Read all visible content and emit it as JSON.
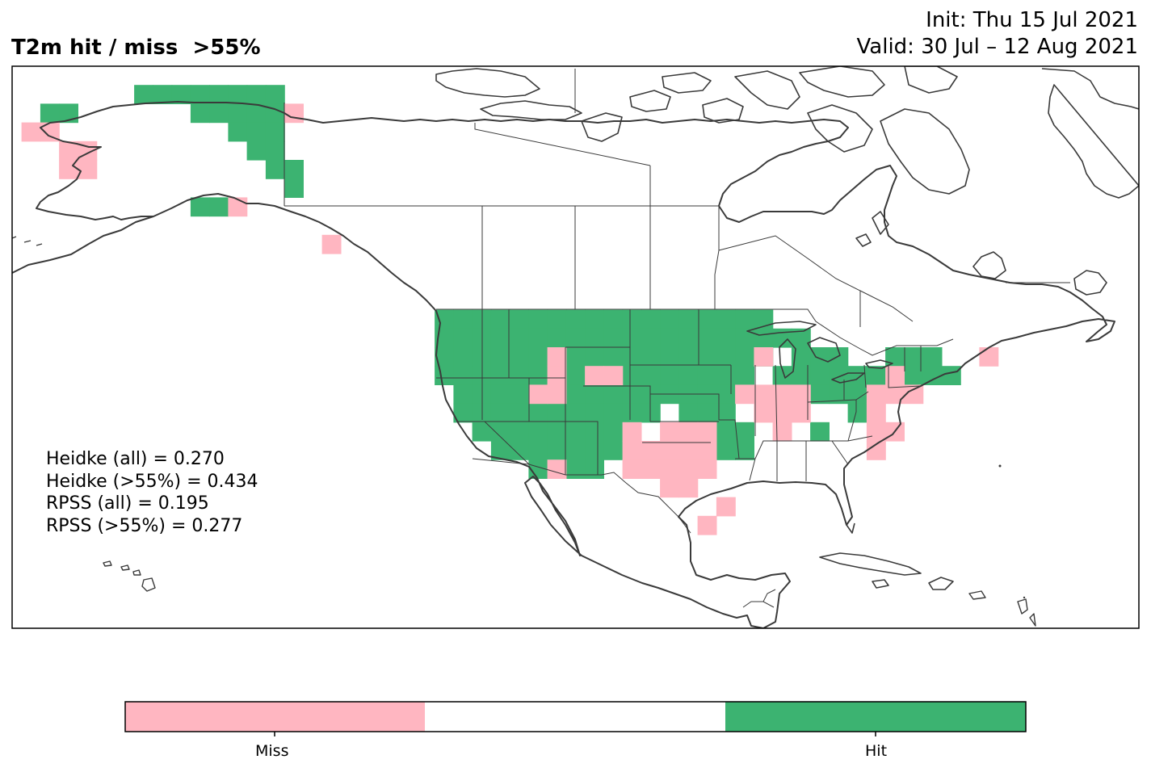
{
  "header": {
    "title": "T2m hit / miss  >55%",
    "init": "Init: Thu 15 Jul 2021",
    "valid": "Valid: 30 Jul – 12 Aug 2021"
  },
  "stats": [
    "Heidke (all) = 0.270",
    "Heidke (>55%) = 0.434",
    "RPSS (all) = 0.195",
    "RPSS (>55%) = 0.277"
  ],
  "legend": {
    "categories": [
      "Miss",
      "",
      "Hit"
    ],
    "labels": {
      "miss": "Miss",
      "hit": "Hit"
    },
    "colors": {
      "miss": "#ffb6c1",
      "neutral": "#ffffff",
      "hit": "#3cb371"
    }
  },
  "colors": {
    "coast": "#3a3a3a",
    "border": "#3a3a3a",
    "frame": "#000000"
  },
  "map_data": {
    "projection": "PlateCarree",
    "extent": {
      "lon": [
        -170,
        -50
      ],
      "lat": [
        15,
        75
      ]
    },
    "cell_size_deg": 2,
    "hit_cells": [
      [
        -166,
        70
      ],
      [
        -164,
        70
      ],
      [
        -156,
        72
      ],
      [
        -154,
        72
      ],
      [
        -152,
        72
      ],
      [
        -150,
        72
      ],
      [
        -148,
        72
      ],
      [
        -146,
        72
      ],
      [
        -144,
        72
      ],
      [
        -142,
        72
      ],
      [
        -150,
        70
      ],
      [
        -148,
        70
      ],
      [
        -146,
        70
      ],
      [
        -144,
        70
      ],
      [
        -142,
        70
      ],
      [
        -146,
        68
      ],
      [
        -144,
        68
      ],
      [
        -142,
        68
      ],
      [
        -144,
        66
      ],
      [
        -142,
        66
      ],
      [
        -142,
        64
      ],
      [
        -140,
        64
      ],
      [
        -140,
        62
      ],
      [
        -150,
        60
      ],
      [
        -148,
        60
      ],
      [
        -124,
        48
      ],
      [
        -122,
        48
      ],
      [
        -120,
        48
      ],
      [
        -118,
        48
      ],
      [
        -116,
        48
      ],
      [
        -114,
        48
      ],
      [
        -112,
        48
      ],
      [
        -110,
        48
      ],
      [
        -108,
        48
      ],
      [
        -106,
        48
      ],
      [
        -104,
        48
      ],
      [
        -102,
        48
      ],
      [
        -100,
        48
      ],
      [
        -98,
        48
      ],
      [
        -96,
        48
      ],
      [
        -94,
        48
      ],
      [
        -92,
        48
      ],
      [
        -90,
        48
      ],
      [
        -124,
        46
      ],
      [
        -122,
        46
      ],
      [
        -120,
        46
      ],
      [
        -118,
        46
      ],
      [
        -116,
        46
      ],
      [
        -114,
        46
      ],
      [
        -112,
        46
      ],
      [
        -110,
        46
      ],
      [
        -108,
        46
      ],
      [
        -106,
        46
      ],
      [
        -104,
        46
      ],
      [
        -102,
        46
      ],
      [
        -100,
        46
      ],
      [
        -98,
        46
      ],
      [
        -96,
        46
      ],
      [
        -94,
        46
      ],
      [
        -92,
        46
      ],
      [
        -90,
        46
      ],
      [
        -88,
        46
      ],
      [
        -86,
        46
      ],
      [
        -124,
        44
      ],
      [
        -122,
        44
      ],
      [
        -120,
        44
      ],
      [
        -118,
        44
      ],
      [
        -116,
        44
      ],
      [
        -114,
        44
      ],
      [
        -110,
        44
      ],
      [
        -108,
        44
      ],
      [
        -106,
        44
      ],
      [
        -104,
        44
      ],
      [
        -102,
        44
      ],
      [
        -100,
        44
      ],
      [
        -98,
        44
      ],
      [
        -96,
        44
      ],
      [
        -94,
        44
      ],
      [
        -92,
        44
      ],
      [
        -90,
        44
      ],
      [
        -86,
        44
      ],
      [
        -84,
        44
      ],
      [
        -82,
        44
      ],
      [
        -76,
        44
      ],
      [
        -74,
        44
      ],
      [
        -72,
        44
      ],
      [
        -124,
        42
      ],
      [
        -122,
        42
      ],
      [
        -120,
        42
      ],
      [
        -118,
        42
      ],
      [
        -116,
        42
      ],
      [
        -114,
        42
      ],
      [
        -110,
        42
      ],
      [
        -104,
        42
      ],
      [
        -102,
        42
      ],
      [
        -100,
        42
      ],
      [
        -98,
        42
      ],
      [
        -96,
        42
      ],
      [
        -94,
        42
      ],
      [
        -92,
        42
      ],
      [
        -88,
        42
      ],
      [
        -86,
        42
      ],
      [
        -84,
        42
      ],
      [
        -82,
        42
      ],
      [
        -80,
        42
      ],
      [
        -78,
        42
      ],
      [
        -74,
        42
      ],
      [
        -72,
        42
      ],
      [
        -70,
        42
      ],
      [
        -122,
        40
      ],
      [
        -120,
        40
      ],
      [
        -118,
        40
      ],
      [
        -116,
        40
      ],
      [
        -110,
        40
      ],
      [
        -108,
        40
      ],
      [
        -106,
        40
      ],
      [
        -104,
        40
      ],
      [
        -102,
        40
      ],
      [
        -100,
        40
      ],
      [
        -98,
        40
      ],
      [
        -96,
        40
      ],
      [
        -94,
        40
      ],
      [
        -84,
        40
      ],
      [
        -82,
        40
      ],
      [
        -80,
        40
      ],
      [
        -122,
        38
      ],
      [
        -120,
        38
      ],
      [
        -118,
        38
      ],
      [
        -116,
        38
      ],
      [
        -114,
        38
      ],
      [
        -112,
        38
      ],
      [
        -110,
        38
      ],
      [
        -108,
        38
      ],
      [
        -106,
        38
      ],
      [
        -104,
        38
      ],
      [
        -102,
        38
      ],
      [
        -98,
        38
      ],
      [
        -96,
        38
      ],
      [
        -94,
        38
      ],
      [
        -80,
        38
      ],
      [
        -120,
        36
      ],
      [
        -118,
        36
      ],
      [
        -116,
        36
      ],
      [
        -114,
        36
      ],
      [
        -112,
        36
      ],
      [
        -110,
        36
      ],
      [
        -108,
        36
      ],
      [
        -106,
        36
      ],
      [
        -94,
        36
      ],
      [
        -92,
        36
      ],
      [
        -84,
        36
      ],
      [
        -118,
        34
      ],
      [
        -116,
        34
      ],
      [
        -114,
        34
      ],
      [
        -112,
        34
      ],
      [
        -110,
        34
      ],
      [
        -108,
        34
      ],
      [
        -106,
        34
      ],
      [
        -94,
        34
      ],
      [
        -92,
        34
      ],
      [
        -114,
        32
      ],
      [
        -110,
        32
      ],
      [
        -108,
        32
      ]
    ],
    "miss_cells": [
      [
        -168,
        68
      ],
      [
        -166,
        68
      ],
      [
        -164,
        66
      ],
      [
        -162,
        66
      ],
      [
        -164,
        64
      ],
      [
        -162,
        64
      ],
      [
        -140,
        70
      ],
      [
        -146,
        60
      ],
      [
        -136,
        56
      ],
      [
        -112,
        44
      ],
      [
        -112,
        42
      ],
      [
        -108,
        42
      ],
      [
        -106,
        42
      ],
      [
        -114,
        40
      ],
      [
        -112,
        40
      ],
      [
        -90,
        44
      ],
      [
        -90,
        40
      ],
      [
        -88,
        40
      ],
      [
        -86,
        40
      ],
      [
        -76,
        42
      ],
      [
        -66,
        44
      ],
      [
        -92,
        40
      ],
      [
        -90,
        38
      ],
      [
        -88,
        38
      ],
      [
        -86,
        38
      ],
      [
        -78,
        40
      ],
      [
        -76,
        40
      ],
      [
        -74,
        40
      ],
      [
        -88,
        36
      ],
      [
        -78,
        38
      ],
      [
        -78,
        36
      ],
      [
        -76,
        36
      ],
      [
        -78,
        34
      ],
      [
        -104,
        36
      ],
      [
        -100,
        36
      ],
      [
        -98,
        36
      ],
      [
        -96,
        36
      ],
      [
        -104,
        34
      ],
      [
        -102,
        34
      ],
      [
        -100,
        34
      ],
      [
        -98,
        34
      ],
      [
        -96,
        34
      ],
      [
        -112,
        32
      ],
      [
        -104,
        32
      ],
      [
        -102,
        32
      ],
      [
        -100,
        32
      ],
      [
        -98,
        32
      ],
      [
        -96,
        32
      ],
      [
        -100,
        30
      ],
      [
        -98,
        30
      ],
      [
        -94,
        28
      ],
      [
        -96,
        26
      ]
    ]
  }
}
